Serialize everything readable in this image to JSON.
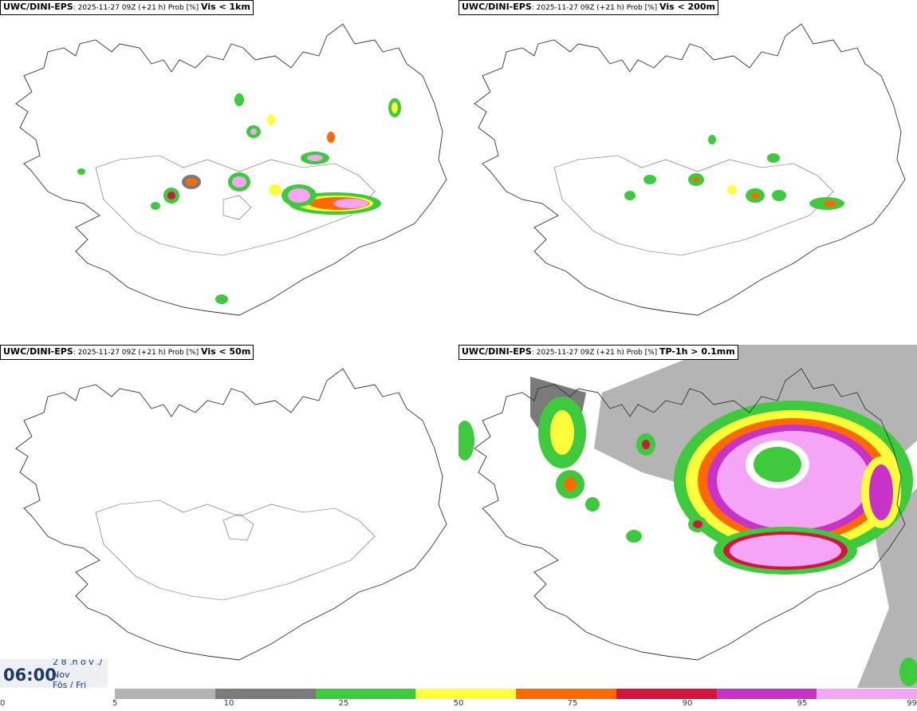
{
  "panels": [
    {
      "source": "UWC/DINI-EPS",
      "meta": ": 2025-11-27 09Z (+21 h) Prob [%] ",
      "variable": "Vis < 1km"
    },
    {
      "source": "UWC/DINI-EPS",
      "meta": ": 2025-11-27 09Z (+21 h) Prob [%] ",
      "variable": "Vis < 200m"
    },
    {
      "source": "UWC/DINI-EPS",
      "meta": ": 2025-11-27 09Z (+21 h) Prob [%] ",
      "variable": "Vis < 50m"
    },
    {
      "source": "UWC/DINI-EPS",
      "meta": ": 2025-11-27 09Z (+21 h) Prob [%] ",
      "variable": "TP-1h > 0.1mm"
    }
  ],
  "time": {
    "hour": "06:00",
    "date_line": "2 8 .n o v ./",
    "month": "Nov",
    "weekday": "Fös / Fri"
  },
  "legend": {
    "ticks": [
      "0",
      "5",
      "10",
      "25",
      "50",
      "75",
      "90",
      "95",
      "99"
    ],
    "colors": [
      "#b4b4b4",
      "#7a7a7a",
      "#3dcb3d",
      "#ffff3a",
      "#ff6a00",
      "#d4143c",
      "#c832c8",
      "#f5a5f5"
    ]
  }
}
